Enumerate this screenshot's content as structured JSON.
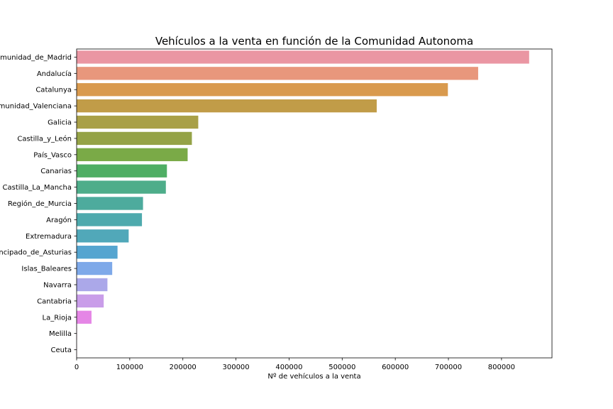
{
  "chart_data": {
    "type": "bar",
    "orientation": "horizontal",
    "title": "Vehículos a la venta en función de la Comunidad Autonoma",
    "xlabel": "Nº de vehículos a la venta",
    "ylabel": "",
    "xlim": [
      0,
      895000
    ],
    "xticks": [
      0,
      100000,
      200000,
      300000,
      400000,
      500000,
      600000,
      700000,
      800000
    ],
    "xtick_labels": [
      "0",
      "100000",
      "200000",
      "300000",
      "400000",
      "500000",
      "600000",
      "700000",
      "800000"
    ],
    "grid": false,
    "legend": "none",
    "categories": [
      "Comunidad_de_Madrid",
      "Andalucía",
      "Catalunya",
      "Comunidad_Valenciana",
      "Galicia",
      "Castilla_y_León",
      "País_Vasco",
      "Canarias",
      "Castilla_La_Mancha",
      "Región_de_Murcia",
      "Aragón",
      "Extremadura",
      "Principado_de_Asturias",
      "Islas_Baleares",
      "Navarra",
      "Cantabria",
      "La_Rioja",
      "Melilla",
      "Ceuta"
    ],
    "values": [
      852000,
      756000,
      699000,
      565000,
      229000,
      217000,
      209000,
      170000,
      168000,
      125000,
      123000,
      98000,
      77000,
      67000,
      58000,
      51000,
      28000,
      600,
      300
    ],
    "colors": [
      "#ea96a3",
      "#e8977c",
      "#d99a4e",
      "#c19c48",
      "#a9a047",
      "#95a347",
      "#7aaa47",
      "#4fae64",
      "#4ead8a",
      "#4dab9d",
      "#4eaaad",
      "#51a8b9",
      "#55a5d0",
      "#7ea9e9",
      "#aba8e9",
      "#c99de9",
      "#e586e6",
      "#e98fc4",
      "#ea92b2"
    ]
  }
}
